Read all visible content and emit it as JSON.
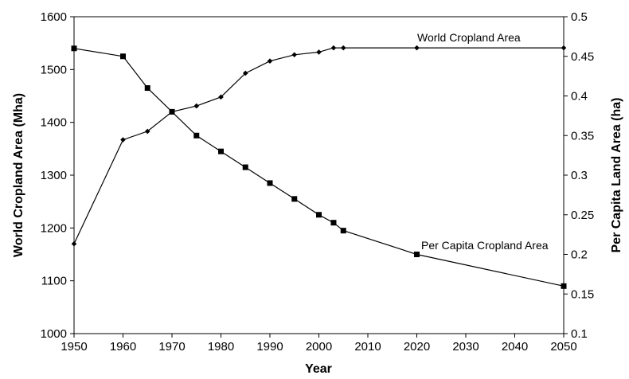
{
  "chart_data": {
    "type": "line",
    "title": "",
    "xlabel": "Year",
    "ylabel": "World Cropland Area (Mha)",
    "y2label": "Per Capita Land Area (ha)",
    "xlim": [
      1950,
      2050
    ],
    "ylim": [
      1000,
      1600
    ],
    "y2lim": [
      0.1,
      0.5
    ],
    "grid": false,
    "legend": "none",
    "x_ticks": [
      "1950",
      "1960",
      "1970",
      "1980",
      "1990",
      "2000",
      "2010",
      "2020",
      "2030",
      "2040",
      "2050"
    ],
    "y_ticks": [
      "1000",
      "1100",
      "1200",
      "1300",
      "1400",
      "1500",
      "1600"
    ],
    "y2_ticks": [
      "0.1",
      "0.15",
      "0.2",
      "0.25",
      "0.3",
      "0.35",
      "0.4",
      "0.45",
      "0.5"
    ],
    "series": [
      {
        "name": "World Cropland Area",
        "axis": "left",
        "marker": "diamond",
        "color": "#000000",
        "x": [
          1950,
          1960,
          1965,
          1970,
          1975,
          1980,
          1985,
          1990,
          1995,
          2000,
          2003,
          2005,
          2020,
          2050
        ],
        "values": [
          1170,
          1367,
          1383,
          1420,
          1431,
          1448,
          1493,
          1516,
          1528,
          1533,
          1541,
          1541,
          1541,
          1541
        ]
      },
      {
        "name": "Per Capita Cropland Area",
        "axis": "right",
        "marker": "square",
        "color": "#000000",
        "x": [
          1950,
          1960,
          1965,
          1970,
          1975,
          1980,
          1985,
          1990,
          1995,
          2000,
          2003,
          2005,
          2020,
          2050
        ],
        "values": [
          0.46,
          0.45,
          0.41,
          0.38,
          0.35,
          0.33,
          0.31,
          0.29,
          0.27,
          0.25,
          0.24,
          0.23,
          0.2,
          0.16
        ]
      }
    ]
  }
}
